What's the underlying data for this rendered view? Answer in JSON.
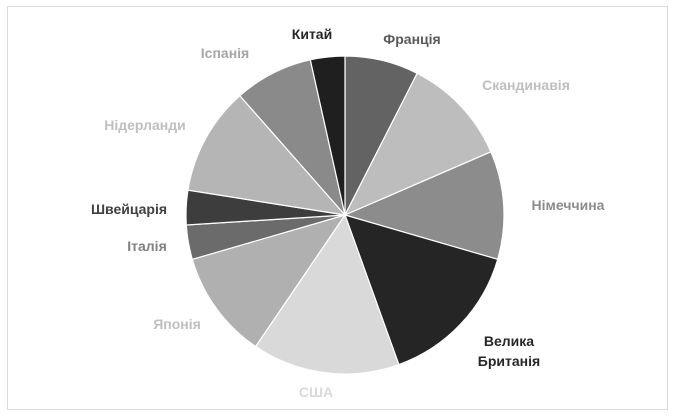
{
  "chart_data": {
    "type": "pie",
    "title": "",
    "legend": "none",
    "slices": [
      {
        "label": "Франція",
        "value": 7.5,
        "color": "#636363",
        "label_color": "#595959"
      },
      {
        "label": "Скандинавія",
        "value": 11,
        "color": "#bdbdbd",
        "label_color": "#bfbfbf"
      },
      {
        "label": "Німеччина",
        "value": 11,
        "color": "#8c8c8c",
        "label_color": "#8c8c8c"
      },
      {
        "label": "Велика Британія",
        "value": 15,
        "color": "#252525",
        "label_color": "#262626"
      },
      {
        "label": "США",
        "value": 15,
        "color": "#d9d9d9",
        "label_color": "#d9d9d9"
      },
      {
        "label": "Японія",
        "value": 11,
        "color": "#b0b0b0",
        "label_color": "#bfbfbf"
      },
      {
        "label": "Італія",
        "value": 3.5,
        "color": "#6b6b6b",
        "label_color": "#808080"
      },
      {
        "label": "Швейцарія",
        "value": 3.5,
        "color": "#3d3d3d",
        "label_color": "#404040"
      },
      {
        "label": "Нідерланди",
        "value": 11,
        "color": "#b5b5b5",
        "label_color": "#bfbfbf"
      },
      {
        "label": "Іспанія",
        "value": 8,
        "color": "#8a8a8a",
        "label_color": "#a6a6a6"
      },
      {
        "label": "Китай",
        "value": 3.5,
        "color": "#1f1f1f",
        "label_color": "#262626"
      }
    ]
  }
}
